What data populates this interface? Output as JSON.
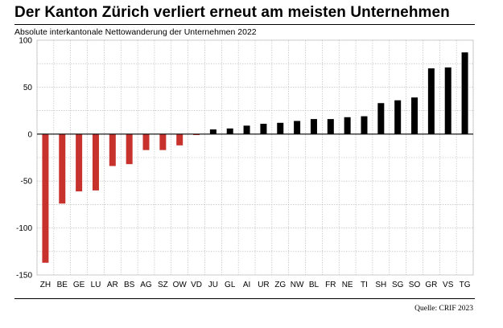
{
  "title": "Der Kanton Zürich verliert erneut am meisten Unternehmen",
  "subtitle": "Absolute interkantonale Nettowanderung der Unternehmen 2022",
  "source": "Quelle: CRIF 2023",
  "colors": {
    "negative": "#c8322d",
    "positive": "#000000",
    "grid": "#b5b5b5"
  },
  "chart_data": {
    "type": "bar",
    "title": "Der Kanton Zürich verliert erneut am meisten Unternehmen",
    "subtitle": "Absolute interkantonale Nettowanderung der Unternehmen 2022",
    "categories": [
      "ZH",
      "BE",
      "GE",
      "LU",
      "AR",
      "BS",
      "AG",
      "SZ",
      "OW",
      "VD",
      "JU",
      "GL",
      "AI",
      "UR",
      "ZG",
      "NW",
      "BL",
      "FR",
      "NE",
      "TI",
      "SH",
      "SG",
      "SO",
      "GR",
      "VS",
      "TG"
    ],
    "values": [
      -137,
      -74,
      -61,
      -60,
      -34,
      -32,
      -17,
      -17,
      -12,
      -1,
      5,
      6,
      9,
      11,
      12,
      14,
      16,
      16,
      18,
      19,
      33,
      36,
      39,
      70,
      71,
      87
    ],
    "ylim": [
      -150,
      100
    ],
    "yticks": [
      -150,
      -100,
      -50,
      0,
      50,
      100
    ],
    "xlabel": "",
    "ylabel": "",
    "grid": true
  }
}
